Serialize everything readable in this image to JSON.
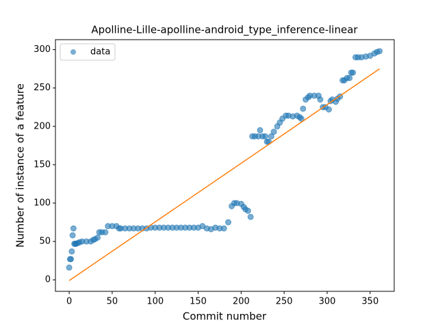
{
  "chart_data": {
    "type": "scatter",
    "title": "Apolline-Lille-apolline-android_type_inference-linear",
    "x_label": "Commit number",
    "y_label": "Number of instance of a feature",
    "xlim": [
      -16,
      378
    ],
    "ylim": [
      -15,
      313
    ],
    "xticks": [
      0,
      50,
      100,
      150,
      200,
      250,
      300,
      350
    ],
    "yticks": [
      0,
      50,
      100,
      150,
      200,
      250,
      300
    ],
    "legend": "upper left",
    "series": [
      {
        "name": "data",
        "type": "scatter",
        "color": "#1f77b4",
        "x": [
          0,
          1,
          2,
          3,
          4,
          5,
          6,
          7,
          8,
          10,
          12,
          15,
          20,
          25,
          28,
          30,
          33,
          35,
          38,
          42,
          45,
          50,
          55,
          58,
          60,
          65,
          70,
          75,
          80,
          85,
          90,
          95,
          100,
          105,
          110,
          115,
          120,
          125,
          130,
          135,
          140,
          145,
          150,
          155,
          160,
          165,
          170,
          175,
          180,
          185,
          189,
          192,
          195,
          200,
          203,
          205,
          208,
          211,
          213,
          216,
          220,
          222,
          225,
          228,
          230,
          232,
          235,
          238,
          242,
          245,
          248,
          252,
          255,
          260,
          265,
          268,
          270,
          272,
          275,
          278,
          280,
          285,
          290,
          292,
          295,
          298,
          302,
          304,
          306,
          310,
          312,
          315,
          318,
          320,
          323,
          326,
          328,
          330,
          333,
          336,
          340,
          345,
          350,
          355,
          358,
          361
        ],
        "values": [
          16,
          27,
          27,
          37,
          58,
          67,
          47,
          47,
          47,
          48,
          49,
          50,
          50,
          50,
          52,
          53,
          55,
          62,
          62,
          62,
          70,
          70,
          70,
          67,
          67,
          67,
          67,
          67,
          67,
          67,
          67,
          68,
          68,
          68,
          68,
          68,
          68,
          68,
          68,
          68,
          68,
          68,
          68,
          70,
          67,
          66,
          68,
          67,
          67,
          75,
          96,
          100,
          100,
          99,
          95,
          92,
          90,
          82,
          187,
          187,
          187,
          195,
          187,
          187,
          180,
          180,
          187,
          193,
          200,
          205,
          210,
          214,
          214,
          213,
          214,
          212,
          210,
          223,
          235,
          238,
          240,
          240,
          240,
          235,
          225,
          225,
          222,
          233,
          235,
          232,
          236,
          239,
          260,
          260,
          263,
          263,
          270,
          270,
          290,
          290,
          290,
          291,
          292,
          295,
          297,
          298
        ]
      },
      {
        "type": "line",
        "color": "#ff7f0e",
        "x": [
          0,
          361
        ],
        "values": [
          -1,
          275
        ]
      }
    ]
  }
}
